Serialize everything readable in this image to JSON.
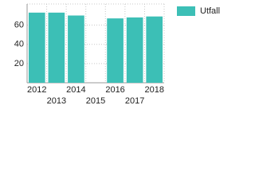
{
  "chart_data": {
    "type": "bar",
    "categories": [
      "2012",
      "2013",
      "2014",
      "2015",
      "2016",
      "2017",
      "2018"
    ],
    "series": [
      {
        "name": "Utfall",
        "color": "#3cbfb6",
        "values": [
          73,
          73,
          70,
          null,
          67,
          68,
          69
        ]
      }
    ],
    "ylim": [
      0,
      82
    ],
    "yticks": [
      20,
      40,
      60
    ],
    "grid": true,
    "legend": "right"
  }
}
